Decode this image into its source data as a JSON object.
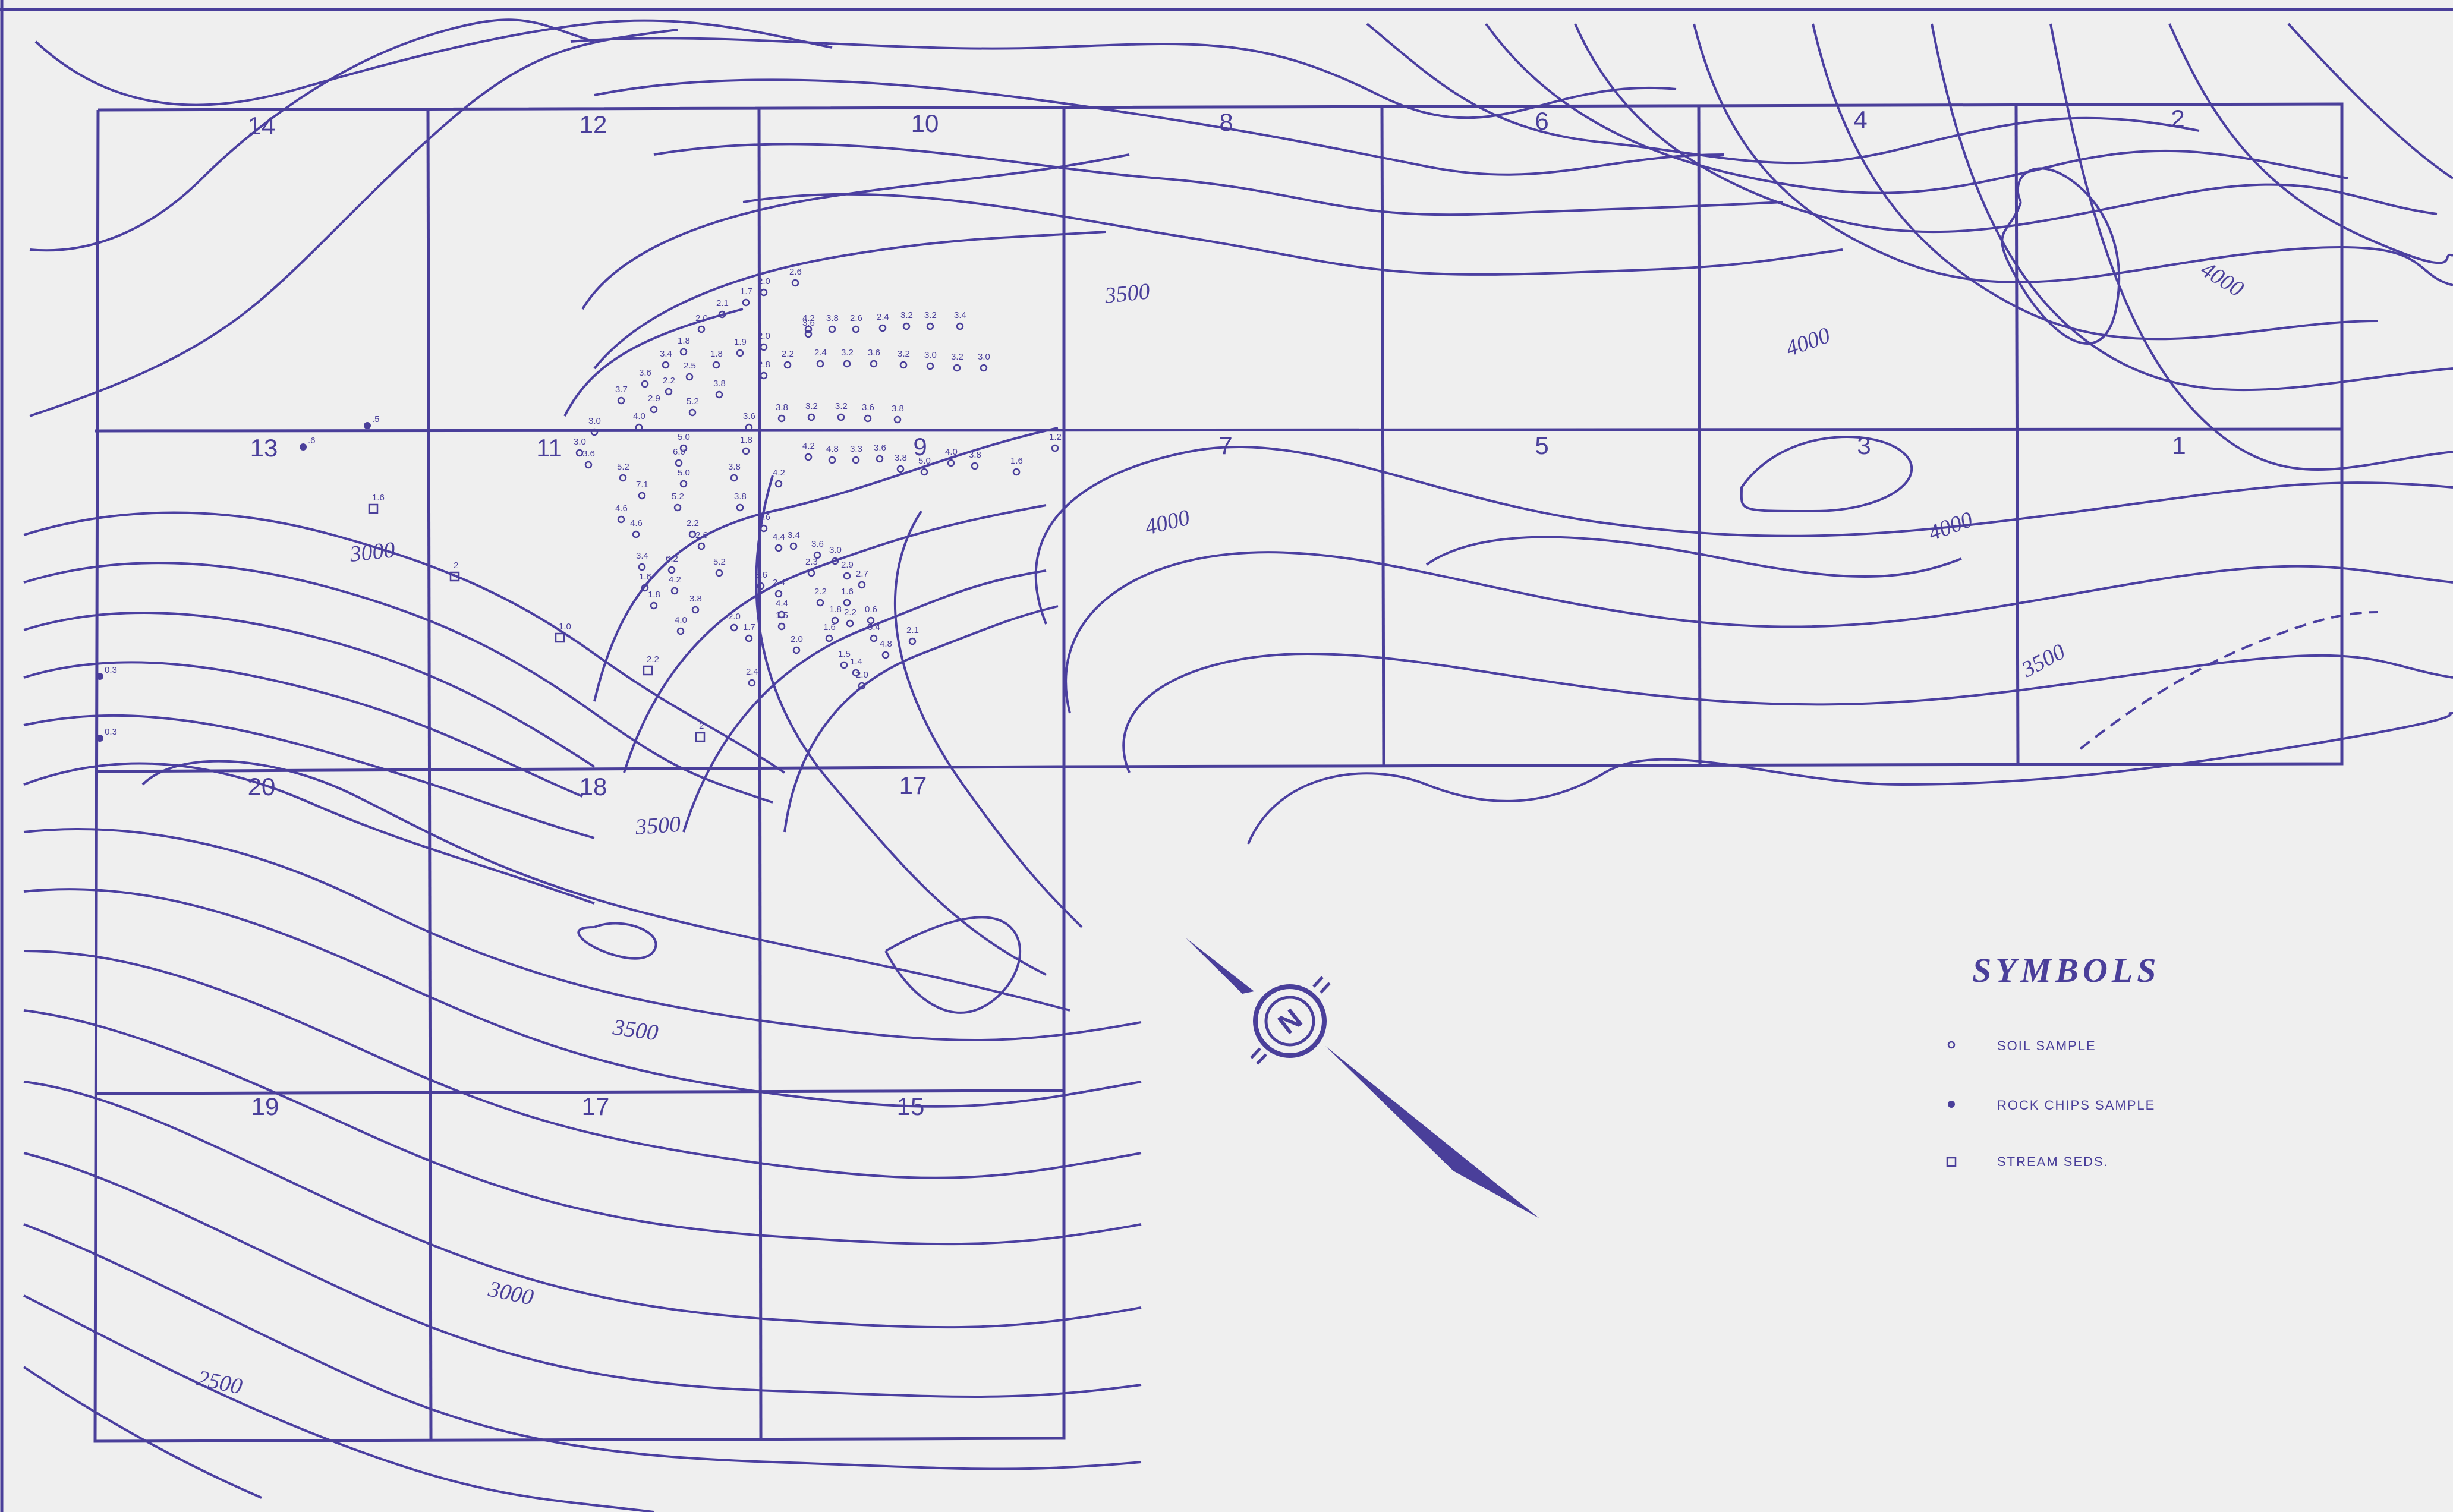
{
  "sections_top": [
    "14",
    "12",
    "10",
    "8",
    "6",
    "4",
    "2"
  ],
  "sections_mid": [
    "13",
    "11",
    "9",
    "7",
    "5",
    "3",
    "1"
  ],
  "sections_lower": [
    "20",
    "18",
    "17"
  ],
  "sections_bottom": [
    "19",
    "17",
    "15"
  ],
  "contour_labels": {
    "c3500_top": "3500",
    "c4000_a": "4000",
    "c4000_b": "4000",
    "c4000_c": "4000",
    "c4000_d": "4000",
    "c3500_e": "3500",
    "c3000_w": "3000",
    "c3500_mid": "3500",
    "c3500_low": "3500",
    "c3000_sw": "3000",
    "c2500_sw": "2500"
  },
  "stream_values": [
    "1.6",
    "2",
    "1.0",
    "2.2",
    "2"
  ],
  "rock_values": [
    ".6",
    ".5",
    "0.3",
    "0.3"
  ],
  "soil_values": [
    "2.0",
    "2.6",
    "1.7",
    "2.1",
    "2.0",
    "1.8",
    "3.6",
    "4.2",
    "3.8",
    "2.6",
    "2.4",
    "3.2",
    "3.2",
    "3.4",
    "3.4",
    "2.5",
    "1.8",
    "1.9",
    "2.0",
    "2.8",
    "2.2",
    "2.4",
    "3.2",
    "3.6",
    "3.2",
    "3.0",
    "3.2",
    "3.0",
    "3.7",
    "3.6",
    "2.2",
    "3.8",
    "3.8",
    "3.2",
    "3.2",
    "3.6",
    "3.8",
    "3.0",
    "2.9",
    "4.0",
    "5.2",
    "3.6",
    "3.0",
    "5.0",
    "1.8",
    "4.2",
    "4.8",
    "3.3",
    "3.6",
    "3.8",
    "5.0",
    "4.0",
    "3.8",
    "1.6",
    "1.2",
    "3.6",
    "6.0",
    "3.8",
    "4.2",
    "5.2",
    "7.1",
    "5.0",
    "3.8",
    "5.2",
    "4.6",
    "2.2",
    "7.6",
    "4.6",
    "2.6",
    "4.4",
    "3.4",
    "3.6",
    "3.0",
    "3.4",
    "6.2",
    "5.2",
    "2.3",
    "2.9",
    "1.6",
    "4.2",
    "3.6",
    "2.4",
    "2.7",
    "1.8",
    "3.8",
    "4.4",
    "2.2",
    "1.6",
    "4.0",
    "2.0",
    "1.5",
    "1.8",
    "2.2",
    "0.6",
    "2.1",
    "1.7",
    "2.0",
    "1.6",
    "5.4",
    "4.8",
    "1.5",
    "1.4",
    "2.0",
    "2.4",
    "1.8",
    "1.0"
  ],
  "legend": {
    "title": "SYMBOLS",
    "soil": "SOIL SAMPLE",
    "rock": "ROCK CHIPS SAMPLE",
    "stream": "STREAM SEDS."
  },
  "colors": {
    "ink": "#4a3f9a",
    "paper": "#efefef"
  },
  "north_arrow": "N"
}
